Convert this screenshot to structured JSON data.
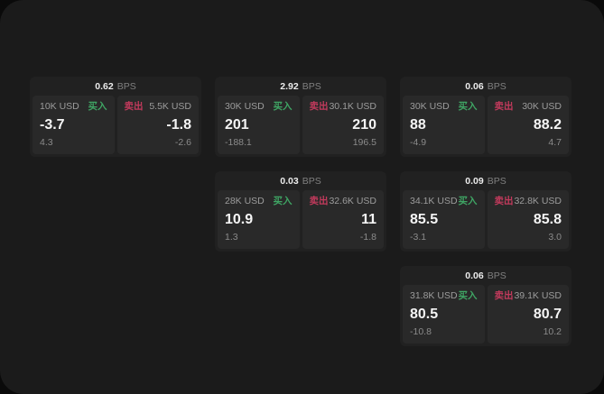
{
  "colors": {
    "app_background": "#1b1b1b",
    "card_background": "#212121",
    "panel_background": "#292929",
    "buy_green": "#3fa564",
    "sell_red": "#c23a5c"
  },
  "cards": [
    {
      "bps": "0.62",
      "bps_unit": "BPS",
      "buy": {
        "amount": "10K USD",
        "side_label": "买入",
        "price": "-3.7",
        "change": "4.3"
      },
      "sell": {
        "side_label": "卖出",
        "amount": "5.5K USD",
        "price": "-1.8",
        "change": "-2.6"
      }
    },
    {
      "bps": "2.92",
      "bps_unit": "BPS",
      "buy": {
        "amount": "30K USD",
        "side_label": "买入",
        "price": "201",
        "change": "-188.1"
      },
      "sell": {
        "side_label": "卖出",
        "amount": "30.1K USD",
        "price": "210",
        "change": "196.5"
      }
    },
    {
      "bps": "0.06",
      "bps_unit": "BPS",
      "buy": {
        "amount": "30K USD",
        "side_label": "买入",
        "price": "88",
        "change": "-4.9"
      },
      "sell": {
        "side_label": "卖出",
        "amount": "30K USD",
        "price": "88.2",
        "change": "4.7"
      }
    },
    {
      "bps": "0.03",
      "bps_unit": "BPS",
      "buy": {
        "amount": "28K USD",
        "side_label": "买入",
        "price": "10.9",
        "change": "1.3"
      },
      "sell": {
        "side_label": "卖出",
        "amount": "32.6K USD",
        "price": "11",
        "change": "-1.8"
      }
    },
    {
      "bps": "0.09",
      "bps_unit": "BPS",
      "buy": {
        "amount": "34.1K USD",
        "side_label": "买入",
        "price": "85.5",
        "change": "-3.1"
      },
      "sell": {
        "side_label": "卖出",
        "amount": "32.8K USD",
        "price": "85.8",
        "change": "3.0"
      }
    },
    {
      "bps": "0.06",
      "bps_unit": "BPS",
      "buy": {
        "amount": "31.8K USD",
        "side_label": "买入",
        "price": "80.5",
        "change": "-10.8"
      },
      "sell": {
        "side_label": "卖出",
        "amount": "39.1K USD",
        "price": "80.7",
        "change": "10.2"
      }
    }
  ]
}
